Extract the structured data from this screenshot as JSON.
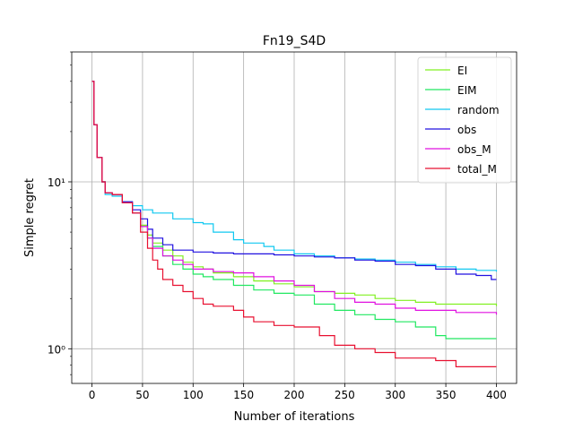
{
  "chart_data": {
    "type": "line",
    "title": "Fn19_S4D",
    "xlabel": "Number of iterations",
    "ylabel": "Simple regret",
    "xlim": [
      -20,
      420
    ],
    "ylim": [
      0.62,
      60
    ],
    "yscale": "log",
    "grid": true,
    "legend": "top-right",
    "x_ticks": [
      0,
      50,
      100,
      150,
      200,
      250,
      300,
      350,
      400
    ],
    "y_ticks": [
      {
        "value": 1,
        "label": "10⁰"
      },
      {
        "value": 10,
        "label": "10¹"
      }
    ],
    "series": [
      {
        "name": "EI",
        "color": "#80f020",
        "points": [
          [
            0,
            40
          ],
          [
            2,
            22
          ],
          [
            5,
            14
          ],
          [
            10,
            10
          ],
          [
            13,
            8.6
          ],
          [
            20,
            8.4
          ],
          [
            30,
            7.5
          ],
          [
            40,
            6.5
          ],
          [
            48,
            5.5
          ],
          [
            55,
            4.8
          ],
          [
            60,
            4.3
          ],
          [
            70,
            3.9
          ],
          [
            80,
            3.6
          ],
          [
            90,
            3.3
          ],
          [
            100,
            3.1
          ],
          [
            110,
            3.0
          ],
          [
            120,
            2.85
          ],
          [
            140,
            2.7
          ],
          [
            160,
            2.55
          ],
          [
            180,
            2.45
          ],
          [
            200,
            2.35
          ],
          [
            220,
            2.2
          ],
          [
            240,
            2.15
          ],
          [
            260,
            2.1
          ],
          [
            280,
            2.0
          ],
          [
            300,
            1.95
          ],
          [
            320,
            1.9
          ],
          [
            340,
            1.85
          ],
          [
            360,
            1.85
          ],
          [
            380,
            1.85
          ],
          [
            400,
            1.8
          ]
        ]
      },
      {
        "name": "EIM",
        "color": "#20e860",
        "points": [
          [
            0,
            40
          ],
          [
            2,
            22
          ],
          [
            5,
            14
          ],
          [
            10,
            10
          ],
          [
            13,
            8.6
          ],
          [
            20,
            8.4
          ],
          [
            30,
            7.5
          ],
          [
            40,
            6.5
          ],
          [
            48,
            5.4
          ],
          [
            55,
            4.6
          ],
          [
            60,
            4.1
          ],
          [
            70,
            3.6
          ],
          [
            80,
            3.2
          ],
          [
            90,
            3.0
          ],
          [
            100,
            2.8
          ],
          [
            110,
            2.7
          ],
          [
            120,
            2.6
          ],
          [
            140,
            2.4
          ],
          [
            160,
            2.25
          ],
          [
            180,
            2.15
          ],
          [
            200,
            2.1
          ],
          [
            220,
            1.85
          ],
          [
            240,
            1.7
          ],
          [
            260,
            1.6
          ],
          [
            280,
            1.5
          ],
          [
            300,
            1.45
          ],
          [
            320,
            1.35
          ],
          [
            340,
            1.2
          ],
          [
            350,
            1.15
          ],
          [
            380,
            1.15
          ],
          [
            400,
            1.15
          ]
        ]
      },
      {
        "name": "random",
        "color": "#10c8f0",
        "points": [
          [
            0,
            40
          ],
          [
            2,
            22
          ],
          [
            5,
            14
          ],
          [
            10,
            10
          ],
          [
            13,
            8.4
          ],
          [
            20,
            8.2
          ],
          [
            30,
            7.6
          ],
          [
            40,
            7.2
          ],
          [
            50,
            6.8
          ],
          [
            60,
            6.5
          ],
          [
            80,
            6.0
          ],
          [
            100,
            5.7
          ],
          [
            110,
            5.6
          ],
          [
            120,
            5.0
          ],
          [
            140,
            4.5
          ],
          [
            150,
            4.3
          ],
          [
            170,
            4.1
          ],
          [
            180,
            3.9
          ],
          [
            200,
            3.7
          ],
          [
            220,
            3.6
          ],
          [
            240,
            3.5
          ],
          [
            260,
            3.45
          ],
          [
            280,
            3.4
          ],
          [
            300,
            3.3
          ],
          [
            320,
            3.2
          ],
          [
            340,
            3.1
          ],
          [
            360,
            3.0
          ],
          [
            380,
            2.95
          ],
          [
            400,
            2.9
          ]
        ]
      },
      {
        "name": "obs",
        "color": "#2010e0",
        "points": [
          [
            0,
            40
          ],
          [
            2,
            22
          ],
          [
            5,
            14
          ],
          [
            10,
            10
          ],
          [
            13,
            8.6
          ],
          [
            20,
            8.4
          ],
          [
            30,
            7.6
          ],
          [
            40,
            6.8
          ],
          [
            48,
            6.0
          ],
          [
            55,
            5.2
          ],
          [
            60,
            4.6
          ],
          [
            70,
            4.2
          ],
          [
            80,
            3.9
          ],
          [
            100,
            3.8
          ],
          [
            120,
            3.75
          ],
          [
            140,
            3.7
          ],
          [
            160,
            3.7
          ],
          [
            180,
            3.65
          ],
          [
            200,
            3.6
          ],
          [
            220,
            3.55
          ],
          [
            240,
            3.5
          ],
          [
            260,
            3.4
          ],
          [
            280,
            3.35
          ],
          [
            300,
            3.2
          ],
          [
            320,
            3.15
          ],
          [
            340,
            3.0
          ],
          [
            360,
            2.8
          ],
          [
            380,
            2.75
          ],
          [
            395,
            2.6
          ],
          [
            400,
            2.6
          ]
        ]
      },
      {
        "name": "obs_M",
        "color": "#e010e0",
        "points": [
          [
            0,
            40
          ],
          [
            2,
            22
          ],
          [
            5,
            14
          ],
          [
            10,
            10
          ],
          [
            13,
            8.6
          ],
          [
            20,
            8.4
          ],
          [
            30,
            7.5
          ],
          [
            40,
            6.5
          ],
          [
            48,
            5.4
          ],
          [
            55,
            4.6
          ],
          [
            60,
            4.0
          ],
          [
            70,
            3.6
          ],
          [
            80,
            3.4
          ],
          [
            90,
            3.2
          ],
          [
            100,
            3.0
          ],
          [
            120,
            2.9
          ],
          [
            140,
            2.85
          ],
          [
            160,
            2.7
          ],
          [
            180,
            2.55
          ],
          [
            200,
            2.4
          ],
          [
            220,
            2.2
          ],
          [
            240,
            2.0
          ],
          [
            260,
            1.9
          ],
          [
            280,
            1.85
          ],
          [
            300,
            1.75
          ],
          [
            320,
            1.7
          ],
          [
            340,
            1.7
          ],
          [
            360,
            1.65
          ],
          [
            380,
            1.65
          ],
          [
            400,
            1.6
          ]
        ]
      },
      {
        "name": "total_M",
        "color": "#e81030",
        "points": [
          [
            0,
            40
          ],
          [
            2,
            22
          ],
          [
            5,
            14
          ],
          [
            10,
            10
          ],
          [
            13,
            8.6
          ],
          [
            20,
            8.4
          ],
          [
            30,
            7.5
          ],
          [
            40,
            6.5
          ],
          [
            48,
            5.0
          ],
          [
            55,
            4.0
          ],
          [
            60,
            3.4
          ],
          [
            65,
            3.0
          ],
          [
            70,
            2.6
          ],
          [
            80,
            2.4
          ],
          [
            90,
            2.2
          ],
          [
            100,
            2.0
          ],
          [
            110,
            1.85
          ],
          [
            120,
            1.8
          ],
          [
            140,
            1.7
          ],
          [
            150,
            1.55
          ],
          [
            160,
            1.45
          ],
          [
            180,
            1.38
          ],
          [
            200,
            1.35
          ],
          [
            220,
            1.35
          ],
          [
            225,
            1.2
          ],
          [
            240,
            1.05
          ],
          [
            260,
            1.0
          ],
          [
            280,
            0.95
          ],
          [
            300,
            0.88
          ],
          [
            320,
            0.88
          ],
          [
            340,
            0.85
          ],
          [
            360,
            0.78
          ],
          [
            380,
            0.78
          ],
          [
            400,
            0.78
          ]
        ]
      }
    ]
  }
}
